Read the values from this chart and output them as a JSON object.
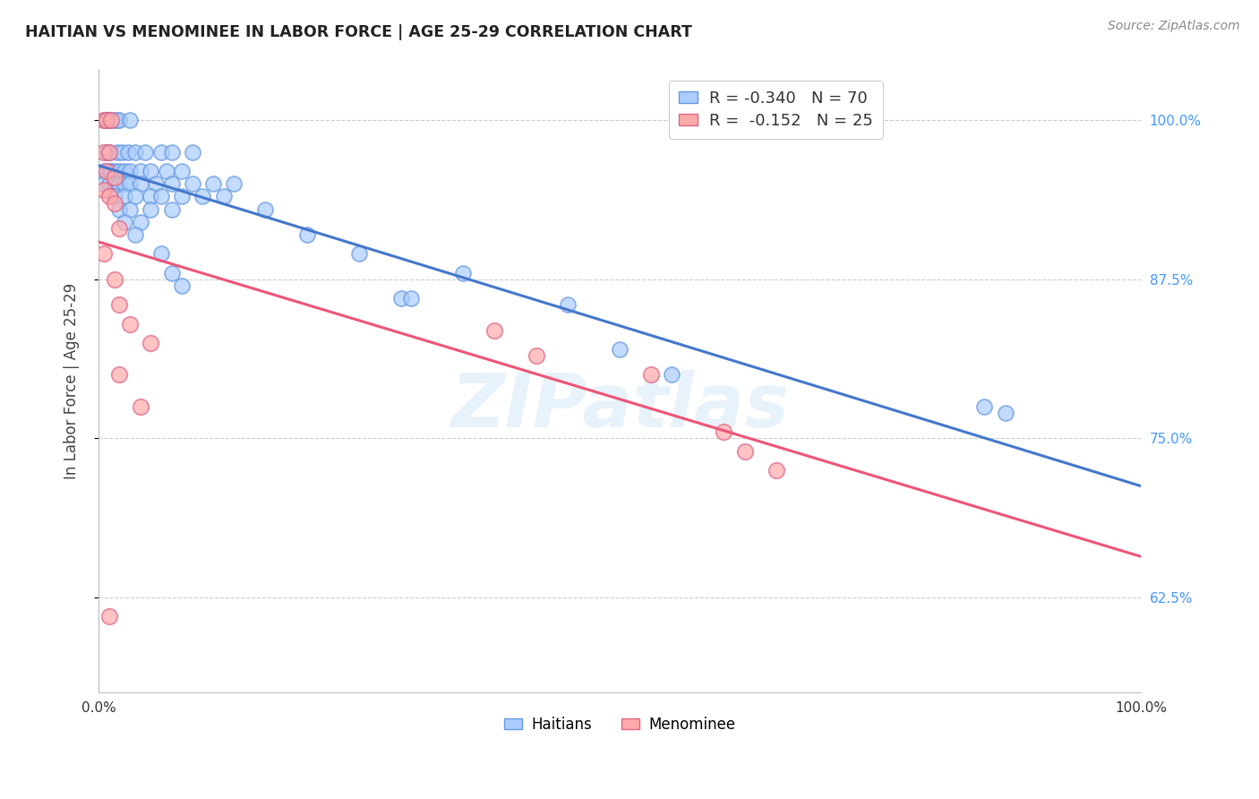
{
  "title": "HAITIAN VS MENOMINEE IN LABOR FORCE | AGE 25-29 CORRELATION CHART",
  "source": "Source: ZipAtlas.com",
  "ylabel": "In Labor Force | Age 25-29",
  "blue_color": "#aaccff",
  "pink_color": "#ffaaaa",
  "blue_edge_color": "#6699dd",
  "pink_edge_color": "#dd6688",
  "blue_line_color": "#4477cc",
  "pink_line_color": "#ee5577",
  "legend_blue_label": "R = -0.340   N = 70",
  "legend_pink_label": "R =  -0.152   N = 25",
  "legend_blue_r_val": "-0.340",
  "legend_blue_n_val": "70",
  "legend_pink_r_val": "-0.152",
  "legend_pink_n_val": "25",
  "watermark": "ZIPatlas",
  "background_color": "#ffffff",
  "grid_color": "#cccccc",
  "title_color": "#222222",
  "right_tick_color": "#4499ff",
  "blue_scatter": [
    [
      0.005,
      1.0
    ],
    [
      0.008,
      1.0
    ],
    [
      0.01,
      1.0
    ],
    [
      0.012,
      1.0
    ],
    [
      0.015,
      1.0
    ],
    [
      0.018,
      1.0
    ],
    [
      0.02,
      1.0
    ],
    [
      0.03,
      1.0
    ],
    [
      0.008,
      0.975
    ],
    [
      0.01,
      0.975
    ],
    [
      0.018,
      0.975
    ],
    [
      0.022,
      0.975
    ],
    [
      0.028,
      0.975
    ],
    [
      0.035,
      0.975
    ],
    [
      0.045,
      0.975
    ],
    [
      0.06,
      0.975
    ],
    [
      0.07,
      0.975
    ],
    [
      0.09,
      0.975
    ],
    [
      0.005,
      0.96
    ],
    [
      0.01,
      0.96
    ],
    [
      0.012,
      0.96
    ],
    [
      0.015,
      0.96
    ],
    [
      0.02,
      0.96
    ],
    [
      0.025,
      0.96
    ],
    [
      0.03,
      0.96
    ],
    [
      0.04,
      0.96
    ],
    [
      0.05,
      0.96
    ],
    [
      0.065,
      0.96
    ],
    [
      0.08,
      0.96
    ],
    [
      0.005,
      0.95
    ],
    [
      0.01,
      0.95
    ],
    [
      0.015,
      0.95
    ],
    [
      0.02,
      0.95
    ],
    [
      0.025,
      0.95
    ],
    [
      0.03,
      0.95
    ],
    [
      0.04,
      0.95
    ],
    [
      0.055,
      0.95
    ],
    [
      0.07,
      0.95
    ],
    [
      0.09,
      0.95
    ],
    [
      0.11,
      0.95
    ],
    [
      0.13,
      0.95
    ],
    [
      0.015,
      0.94
    ],
    [
      0.025,
      0.94
    ],
    [
      0.035,
      0.94
    ],
    [
      0.05,
      0.94
    ],
    [
      0.06,
      0.94
    ],
    [
      0.08,
      0.94
    ],
    [
      0.1,
      0.94
    ],
    [
      0.12,
      0.94
    ],
    [
      0.02,
      0.93
    ],
    [
      0.03,
      0.93
    ],
    [
      0.05,
      0.93
    ],
    [
      0.07,
      0.93
    ],
    [
      0.16,
      0.93
    ],
    [
      0.025,
      0.92
    ],
    [
      0.04,
      0.92
    ],
    [
      0.035,
      0.91
    ],
    [
      0.2,
      0.91
    ],
    [
      0.06,
      0.895
    ],
    [
      0.25,
      0.895
    ],
    [
      0.07,
      0.88
    ],
    [
      0.35,
      0.88
    ],
    [
      0.08,
      0.87
    ],
    [
      0.29,
      0.86
    ],
    [
      0.3,
      0.86
    ],
    [
      0.45,
      0.855
    ],
    [
      0.5,
      0.82
    ],
    [
      0.55,
      0.8
    ],
    [
      0.85,
      0.775
    ],
    [
      0.87,
      0.77
    ]
  ],
  "pink_scatter": [
    [
      0.005,
      1.0
    ],
    [
      0.008,
      1.0
    ],
    [
      0.012,
      1.0
    ],
    [
      0.005,
      0.975
    ],
    [
      0.01,
      0.975
    ],
    [
      0.008,
      0.96
    ],
    [
      0.015,
      0.955
    ],
    [
      0.005,
      0.945
    ],
    [
      0.01,
      0.94
    ],
    [
      0.015,
      0.935
    ],
    [
      0.02,
      0.915
    ],
    [
      0.005,
      0.895
    ],
    [
      0.015,
      0.875
    ],
    [
      0.02,
      0.855
    ],
    [
      0.03,
      0.84
    ],
    [
      0.05,
      0.825
    ],
    [
      0.02,
      0.8
    ],
    [
      0.04,
      0.775
    ],
    [
      0.38,
      0.835
    ],
    [
      0.42,
      0.815
    ],
    [
      0.53,
      0.8
    ],
    [
      0.6,
      0.755
    ],
    [
      0.62,
      0.74
    ],
    [
      0.65,
      0.725
    ],
    [
      0.01,
      0.61
    ]
  ],
  "xlim": [
    0.0,
    1.0
  ],
  "ylim": [
    0.55,
    1.04
  ],
  "yticks": [
    0.625,
    0.75,
    0.875,
    1.0
  ],
  "ytick_labels": [
    "62.5%",
    "75.0%",
    "87.5%",
    "100.0%"
  ],
  "xticks": [
    0.0,
    0.1,
    0.2,
    0.3,
    0.4,
    0.5,
    0.6,
    0.7,
    0.8,
    0.9,
    1.0
  ],
  "xtick_labels": [
    "0.0%",
    "",
    "",
    "",
    "",
    "",
    "",
    "",
    "",
    "",
    "100.0%"
  ]
}
